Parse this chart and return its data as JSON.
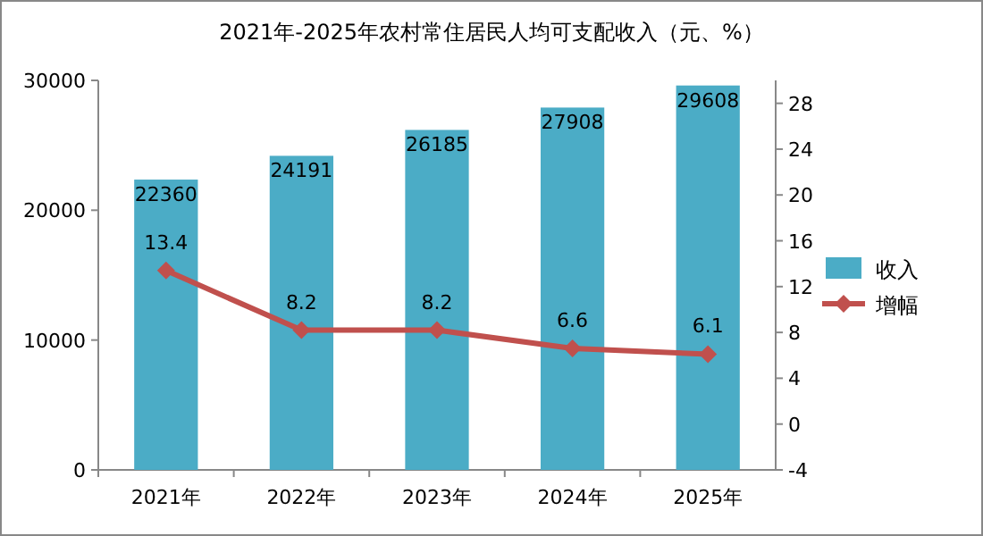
{
  "chart_data": {
    "type": "bar",
    "title": "2021年-2025年农村常住居民人均可支配收入（元、%）",
    "categories": [
      "2021年",
      "2022年",
      "2023年",
      "2024年",
      "2025年"
    ],
    "series": [
      {
        "name": "收入",
        "color": "#4bacc6",
        "values": [
          22360,
          24191,
          26185,
          27908,
          29608
        ]
      },
      {
        "name": "增幅",
        "type": "line",
        "axis": "y2",
        "color": "#c0504d",
        "marker": "diamond",
        "values": [
          13.4,
          8.2,
          8.2,
          6.6,
          6.1
        ]
      }
    ],
    "ylim": [
      0,
      30000
    ],
    "yticks": [
      0,
      10000,
      20000,
      30000
    ],
    "y2lim": [
      -4,
      30
    ],
    "y2ticks": [
      -4,
      0,
      4,
      8,
      12,
      16,
      20,
      24,
      28
    ],
    "data_labels": true,
    "legend": "right",
    "grid": false
  }
}
